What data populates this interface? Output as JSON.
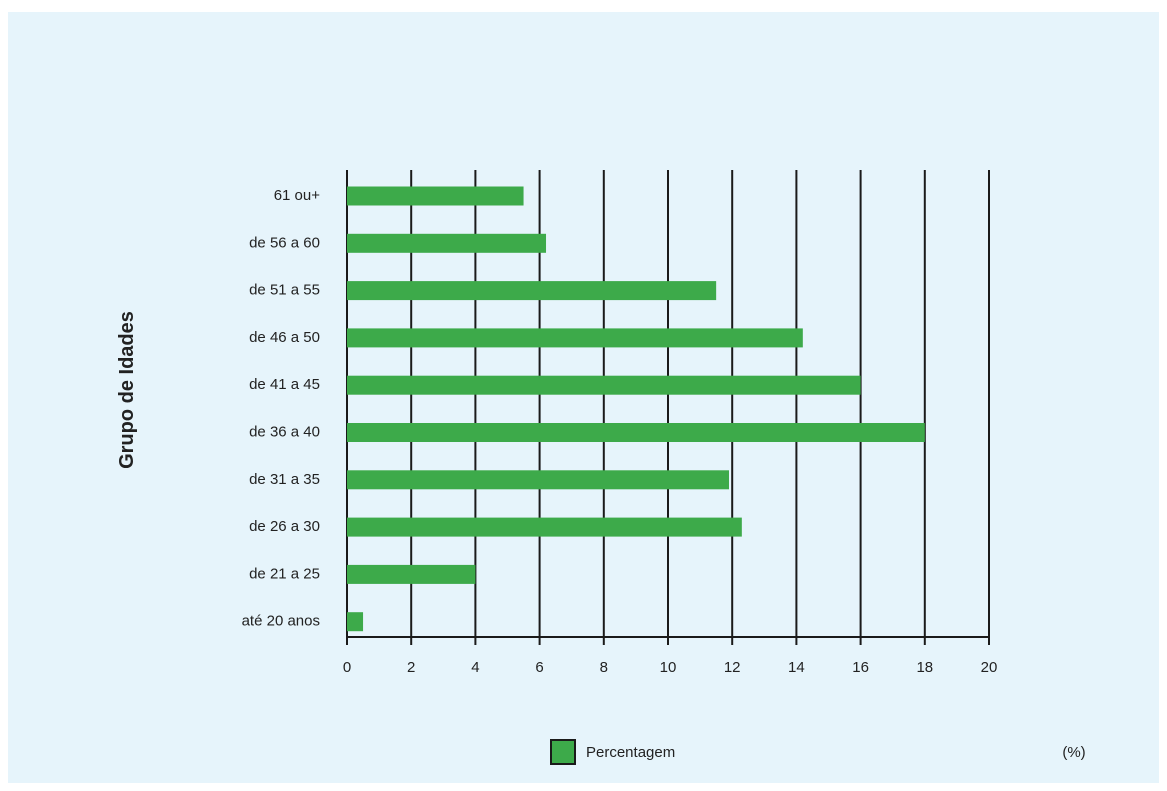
{
  "colors": {
    "background": "#e6f4fb",
    "bar": "#3daa4a",
    "axis": "#1a1a1a",
    "text": "#222222",
    "legend_border": "#1a1a1a"
  },
  "chart_data": {
    "type": "bar",
    "orientation": "horizontal",
    "title": "",
    "xlabel": "",
    "ylabel": "Grupo de Idades",
    "unit": "(%)",
    "xlim": [
      0,
      20
    ],
    "xticks": [
      0,
      2,
      4,
      6,
      8,
      10,
      12,
      14,
      16,
      18,
      20
    ],
    "grid": "vertical",
    "legend_position": "bottom",
    "categories": [
      "61 ou+",
      "de 56 a 60",
      "de 51 a 55",
      "de 46 a 50",
      "de 41 a 45",
      "de 36 a 40",
      "de 31 a 35",
      "de 26 a 30",
      "de 21 a 25",
      "até 20 anos"
    ],
    "series": [
      {
        "name": "Percentagem",
        "values": [
          5.5,
          6.2,
          11.5,
          14.2,
          16.0,
          18.0,
          11.9,
          12.3,
          4.0,
          0.5
        ]
      }
    ]
  }
}
